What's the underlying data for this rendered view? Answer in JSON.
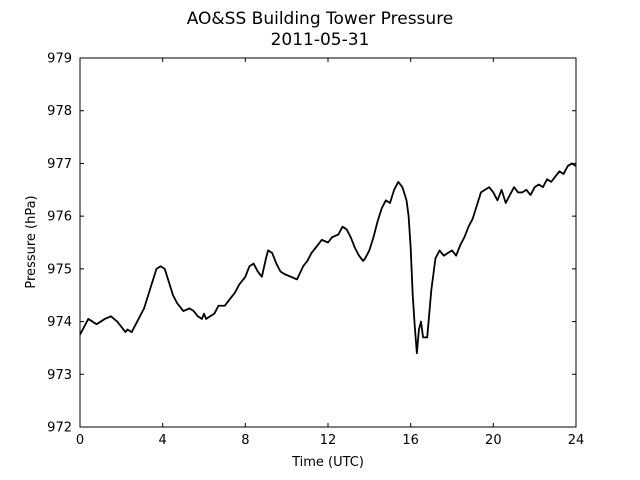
{
  "chart_data": {
    "type": "line",
    "title": "AO&SS Building Tower Pressure",
    "subtitle": "2011-05-31",
    "xlabel": "Time (UTC)",
    "ylabel": "Pressure (hPa)",
    "xlim": [
      0,
      24
    ],
    "ylim": [
      972,
      979
    ],
    "xticks": [
      0,
      4,
      8,
      12,
      16,
      20,
      24
    ],
    "yticks": [
      972,
      973,
      974,
      975,
      976,
      977,
      978,
      979
    ],
    "grid": false,
    "line_color": "#000000",
    "series": [
      {
        "x": [
          0,
          0.2,
          0.4,
          0.6,
          0.8,
          1.0,
          1.2,
          1.5,
          1.8,
          2.0,
          2.2,
          2.3,
          2.5,
          2.7,
          2.9,
          3.1,
          3.3,
          3.5,
          3.7,
          3.9,
          4.1,
          4.3,
          4.5,
          4.7,
          5.0,
          5.3,
          5.5,
          5.7,
          5.9,
          6.0,
          6.1,
          6.3,
          6.5,
          6.7,
          7.0,
          7.3,
          7.5,
          7.7,
          8.0,
          8.2,
          8.4,
          8.6,
          8.8,
          9.0,
          9.1,
          9.3,
          9.5,
          9.7,
          9.9,
          10.2,
          10.5,
          10.8,
          11.0,
          11.2,
          11.5,
          11.7,
          12.0,
          12.2,
          12.5,
          12.7,
          12.9,
          13.1,
          13.3,
          13.5,
          13.7,
          13.8,
          14.0,
          14.2,
          14.4,
          14.6,
          14.8,
          15.0,
          15.2,
          15.4,
          15.6,
          15.8,
          15.9,
          16.0,
          16.1,
          16.2,
          16.3,
          16.4,
          16.5,
          16.6,
          16.8,
          17.0,
          17.2,
          17.4,
          17.6,
          17.8,
          18.0,
          18.2,
          18.4,
          18.6,
          18.8,
          19.0,
          19.2,
          19.4,
          19.6,
          19.8,
          20.0,
          20.2,
          20.4,
          20.6,
          20.8,
          21.0,
          21.2,
          21.4,
          21.6,
          21.8,
          22.0,
          22.2,
          22.4,
          22.6,
          22.8,
          23.0,
          23.2,
          23.4,
          23.6,
          23.8,
          24.0
        ],
        "values": [
          973.75,
          973.9,
          974.05,
          974.0,
          973.95,
          974.0,
          974.05,
          974.1,
          974.0,
          973.9,
          973.8,
          973.85,
          973.8,
          973.95,
          974.1,
          974.25,
          974.5,
          974.75,
          975.0,
          975.05,
          975.0,
          974.75,
          974.5,
          974.35,
          974.2,
          974.25,
          974.2,
          974.1,
          974.05,
          974.15,
          974.05,
          974.1,
          974.15,
          974.3,
          974.3,
          974.45,
          974.55,
          974.7,
          974.85,
          975.05,
          975.1,
          974.95,
          974.85,
          975.2,
          975.35,
          975.3,
          975.1,
          974.95,
          974.9,
          974.85,
          974.8,
          975.05,
          975.15,
          975.3,
          975.45,
          975.55,
          975.5,
          975.6,
          975.65,
          975.8,
          975.75,
          975.6,
          975.4,
          975.25,
          975.15,
          975.2,
          975.35,
          975.6,
          975.9,
          976.15,
          976.3,
          976.25,
          976.5,
          976.65,
          976.55,
          976.3,
          976.0,
          975.4,
          974.5,
          973.9,
          973.4,
          973.85,
          974.0,
          973.7,
          973.7,
          974.6,
          975.2,
          975.35,
          975.25,
          975.3,
          975.35,
          975.25,
          975.45,
          975.6,
          975.8,
          975.95,
          976.2,
          976.45,
          976.5,
          976.55,
          976.45,
          976.3,
          976.5,
          976.25,
          976.4,
          976.55,
          976.45,
          976.45,
          976.5,
          976.4,
          976.55,
          976.6,
          976.55,
          976.7,
          976.65,
          976.75,
          976.85,
          976.8,
          976.95,
          977.0,
          976.95
        ]
      }
    ]
  }
}
